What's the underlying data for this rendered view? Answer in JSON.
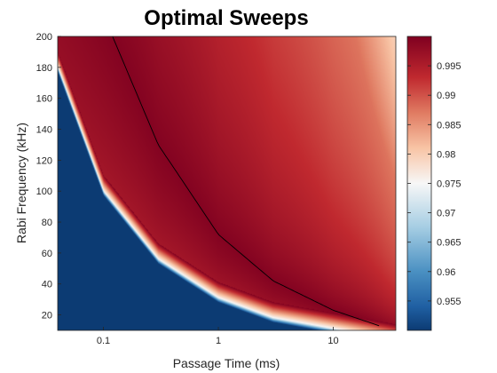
{
  "chart_data": {
    "type": "heatmap",
    "title": "Optimal Sweeps",
    "xlabel": "Passage Time (ms)",
    "ylabel": "Rabi Frequency (kHz)",
    "x_scale": "log",
    "xlim": [
      0.04,
      35
    ],
    "ylim": [
      10,
      200
    ],
    "x_ticks": [
      0.1,
      1,
      10
    ],
    "x_tick_labels": [
      "0.1",
      "1",
      "10"
    ],
    "y_ticks": [
      20,
      40,
      60,
      80,
      100,
      120,
      140,
      160,
      180,
      200
    ],
    "y_tick_labels": [
      "20",
      "40",
      "60",
      "80",
      "100",
      "120",
      "140",
      "160",
      "180",
      "200"
    ],
    "colorbar": {
      "range": [
        0.95,
        1.0
      ],
      "ticks": [
        0.955,
        0.96,
        0.965,
        0.97,
        0.975,
        0.98,
        0.985,
        0.99,
        0.995
      ],
      "tick_labels": [
        "0.955",
        "0.96",
        "0.965",
        "0.97",
        "0.975",
        "0.98",
        "0.985",
        "0.99",
        "0.995"
      ],
      "colormap": "blue-white-red (diverging)",
      "colors": {
        "low": "#0c3b73",
        "mid": "#f7f7f7",
        "high": "#7f0020"
      }
    },
    "threshold_curve": {
      "description_visible": false,
      "points": [
        [
          0.04,
          180
        ],
        [
          0.1,
          100
        ],
        [
          0.3,
          56
        ],
        [
          1,
          31
        ],
        [
          3,
          18
        ],
        [
          10,
          11
        ]
      ]
    },
    "optimal_curve": {
      "color": "#000000",
      "points": [
        [
          0.12,
          200
        ],
        [
          0.3,
          130
        ],
        [
          1,
          72
        ],
        [
          3,
          42
        ],
        [
          10,
          23
        ],
        [
          25,
          13
        ]
      ]
    },
    "grid": false
  }
}
